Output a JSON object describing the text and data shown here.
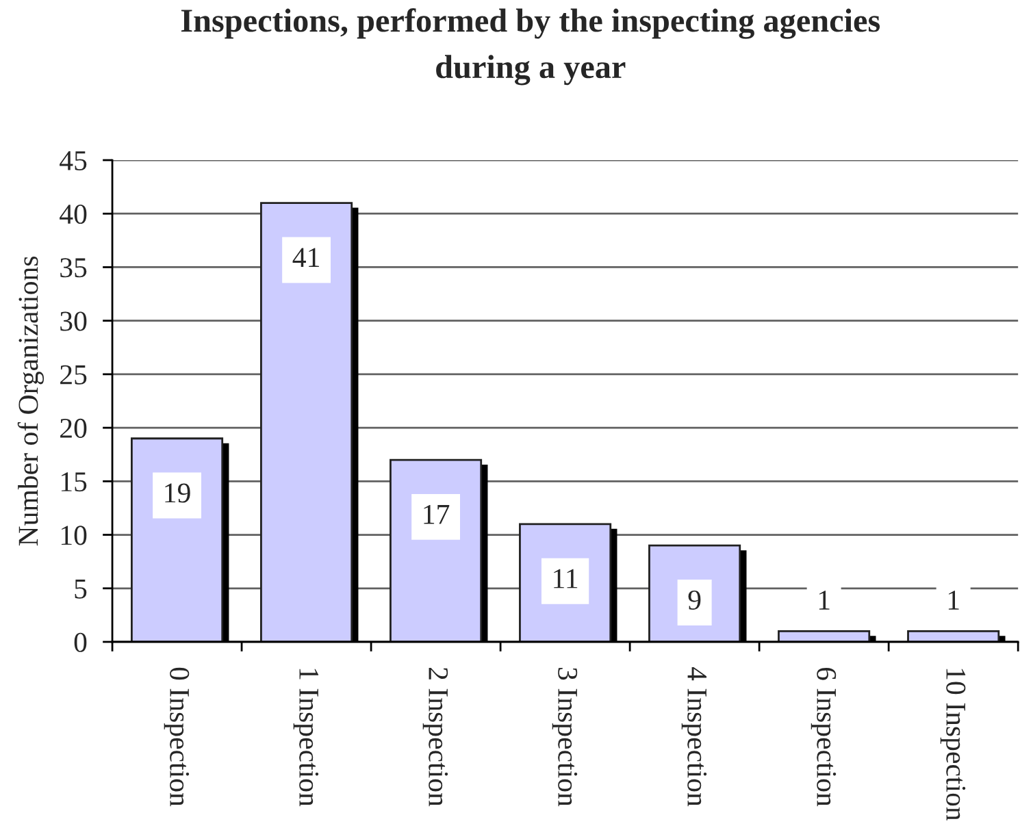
{
  "chart_data": {
    "type": "bar",
    "title": "Inspections, performed by the inspecting agencies\nduring a year",
    "ylabel": "Number of Organizations",
    "categories": [
      "0 Inspection",
      "1 Inspection",
      "2 Inspection",
      "3 Inspection",
      "4 Inspection",
      "6 Inspection",
      "10 Inspection"
    ],
    "values": [
      19,
      41,
      17,
      11,
      9,
      1,
      1
    ],
    "color": "#ccccff",
    "ylim": [
      0,
      45
    ],
    "yticks": [
      0,
      5,
      10,
      15,
      20,
      25,
      30,
      35,
      40,
      45
    ],
    "grid": "y",
    "data_labels": true
  }
}
